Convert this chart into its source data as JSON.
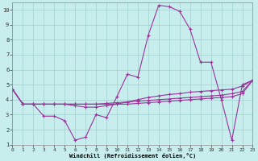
{
  "xlabel": "Windchill (Refroidissement éolien,°C)",
  "xlim": [
    0,
    23
  ],
  "ylim": [
    1,
    10.5
  ],
  "xticks": [
    0,
    1,
    2,
    3,
    4,
    5,
    6,
    7,
    8,
    9,
    10,
    11,
    12,
    13,
    14,
    15,
    16,
    17,
    18,
    19,
    20,
    21,
    22,
    23
  ],
  "yticks": [
    1,
    2,
    3,
    4,
    5,
    6,
    7,
    8,
    9,
    10
  ],
  "bg_color": "#c8eded",
  "grid_color": "#a0d0d0",
  "line_color": "#993399",
  "line1_x": [
    0,
    1,
    2,
    3,
    4,
    5,
    6,
    7,
    8,
    9,
    10,
    11,
    12,
    13,
    14,
    15,
    16,
    17,
    18,
    19,
    20,
    21,
    22,
    23
  ],
  "line1_y": [
    4.7,
    3.7,
    3.7,
    2.9,
    2.9,
    2.6,
    1.3,
    1.5,
    3.0,
    2.8,
    4.2,
    5.7,
    5.5,
    8.3,
    10.3,
    10.2,
    9.9,
    8.7,
    6.5,
    6.5,
    4.0,
    1.3,
    5.0,
    5.3
  ],
  "line2_x": [
    0,
    1,
    2,
    3,
    4,
    5,
    6,
    7,
    8,
    9,
    10,
    11,
    12,
    13,
    14,
    15,
    16,
    17,
    18,
    19,
    20,
    21,
    22,
    23
  ],
  "line2_y": [
    4.7,
    3.7,
    3.7,
    3.7,
    3.7,
    3.7,
    3.6,
    3.5,
    3.5,
    3.6,
    3.7,
    3.85,
    4.0,
    4.15,
    4.25,
    4.35,
    4.4,
    4.5,
    4.55,
    4.6,
    4.65,
    4.7,
    4.9,
    5.3
  ],
  "line3_x": [
    0,
    1,
    2,
    3,
    4,
    5,
    6,
    7,
    8,
    9,
    10,
    11,
    12,
    13,
    14,
    15,
    16,
    17,
    18,
    19,
    20,
    21,
    22,
    23
  ],
  "line3_y": [
    4.7,
    3.7,
    3.7,
    3.7,
    3.7,
    3.7,
    3.7,
    3.7,
    3.7,
    3.75,
    3.8,
    3.85,
    3.9,
    3.95,
    4.0,
    4.05,
    4.1,
    4.15,
    4.2,
    4.25,
    4.3,
    4.4,
    4.55,
    5.3
  ],
  "line4_x": [
    0,
    1,
    2,
    3,
    4,
    5,
    6,
    7,
    8,
    9,
    10,
    11,
    12,
    13,
    14,
    15,
    16,
    17,
    18,
    19,
    20,
    21,
    22,
    23
  ],
  "line4_y": [
    4.7,
    3.7,
    3.7,
    3.7,
    3.7,
    3.7,
    3.7,
    3.7,
    3.7,
    3.7,
    3.7,
    3.7,
    3.75,
    3.8,
    3.85,
    3.9,
    3.95,
    4.0,
    4.05,
    4.1,
    4.15,
    4.2,
    4.4,
    5.3
  ]
}
